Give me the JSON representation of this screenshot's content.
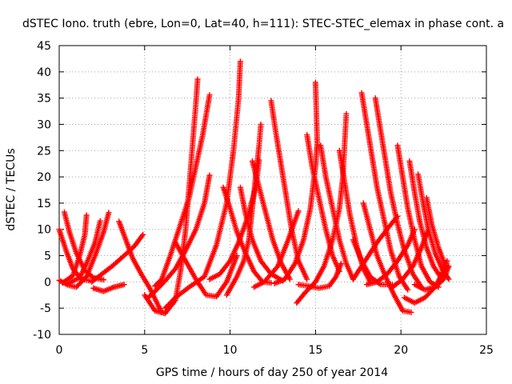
{
  "chart_data": {
    "type": "scatter",
    "title": "dSTEC Iono. truth (ebre, Lon=0, Lat=40, h=111): STEC-STEC_elemax in phase cont. a",
    "xlabel": "GPS time / hours of day 250 of year 2014",
    "ylabel": "dSTEC  / TECUs",
    "xlim": [
      0,
      25
    ],
    "ylim": [
      -10,
      45
    ],
    "xticks": [
      0,
      5,
      10,
      15,
      20,
      25
    ],
    "yticks": [
      -10,
      -5,
      0,
      5,
      10,
      15,
      20,
      25,
      30,
      35,
      40,
      45
    ],
    "grid": true,
    "legend": "none",
    "marker": "+",
    "color": "#ff0000",
    "series": [
      {
        "points": [
          [
            0.0,
            10
          ],
          [
            0.4,
            6
          ],
          [
            0.8,
            2.5
          ],
          [
            1.3,
            0.5
          ],
          [
            1.9,
            0.2
          ]
        ]
      },
      {
        "points": [
          [
            0.3,
            13.3
          ],
          [
            0.6,
            9.5
          ],
          [
            1.0,
            5.5
          ],
          [
            1.5,
            2.2
          ],
          [
            2.0,
            0.8
          ],
          [
            2.6,
            0.4
          ]
        ]
      },
      {
        "points": [
          [
            0.0,
            0.3
          ],
          [
            0.5,
            -0.6
          ],
          [
            1.0,
            -1.0
          ],
          [
            1.6,
            1.0
          ],
          [
            2.1,
            5
          ],
          [
            2.6,
            9.5
          ],
          [
            2.9,
            13.2
          ]
        ]
      },
      {
        "points": [
          [
            0.2,
            -0.2
          ],
          [
            0.8,
            1.2
          ],
          [
            1.2,
            5
          ],
          [
            1.5,
            9
          ],
          [
            1.6,
            12.7
          ]
        ]
      },
      {
        "points": [
          [
            0.5,
            -0.3
          ],
          [
            1.2,
            0.8
          ],
          [
            1.6,
            3.5
          ],
          [
            2.1,
            7.5
          ],
          [
            2.4,
            11.6
          ]
        ]
      },
      {
        "points": [
          [
            2.0,
            -1.2
          ],
          [
            2.6,
            -1.8
          ],
          [
            3.2,
            -1.0
          ],
          [
            3.8,
            -0.5
          ]
        ]
      },
      {
        "points": [
          [
            3.5,
            11.5
          ],
          [
            3.9,
            8
          ],
          [
            4.3,
            4.5
          ],
          [
            4.8,
            1.5
          ],
          [
            5.3,
            -1.2
          ],
          [
            5.8,
            -4.5
          ],
          [
            6.0,
            -5.8
          ]
        ]
      },
      {
        "points": [
          [
            1.9,
            0.0
          ],
          [
            2.5,
            1.5
          ],
          [
            3.1,
            3.0
          ],
          [
            3.8,
            5.0
          ],
          [
            4.4,
            6.8
          ],
          [
            4.9,
            9.0
          ]
        ]
      },
      {
        "points": [
          [
            5.0,
            -2.5
          ],
          [
            5.6,
            -5.5
          ],
          [
            6.2,
            -6.0
          ],
          [
            6.8,
            -3.5
          ],
          [
            7.1,
            2.0
          ],
          [
            7.4,
            10
          ],
          [
            7.7,
            22
          ],
          [
            8.0,
            34
          ],
          [
            8.1,
            38.6
          ]
        ]
      },
      {
        "points": [
          [
            5.6,
            -0.8
          ],
          [
            6.0,
            0.5
          ],
          [
            6.5,
            5.0
          ],
          [
            7.0,
            10
          ],
          [
            7.6,
            16
          ],
          [
            8.0,
            22
          ],
          [
            8.4,
            28
          ],
          [
            8.8,
            35.6
          ]
        ]
      },
      {
        "points": [
          [
            5.2,
            -3.0
          ],
          [
            5.7,
            -1.5
          ],
          [
            6.2,
            0.2
          ],
          [
            6.8,
            2.5
          ],
          [
            7.4,
            6.0
          ],
          [
            8.0,
            10
          ],
          [
            8.5,
            15
          ],
          [
            8.8,
            20.3
          ]
        ]
      },
      {
        "points": [
          [
            6.2,
            -5.0
          ],
          [
            6.8,
            -3.0
          ],
          [
            7.6,
            -1.0
          ],
          [
            8.5,
            1.0
          ],
          [
            9.2,
            7.0
          ],
          [
            9.8,
            15
          ],
          [
            10.2,
            25
          ],
          [
            10.5,
            35
          ],
          [
            10.6,
            42
          ]
        ]
      },
      {
        "points": [
          [
            6.8,
            7.5
          ],
          [
            7.4,
            4.0
          ],
          [
            8.0,
            0.5
          ],
          [
            8.6,
            -2.5
          ],
          [
            9.2,
            -2.8
          ],
          [
            9.8,
            0.0
          ],
          [
            10.4,
            5.0
          ]
        ]
      },
      {
        "points": [
          [
            9.6,
            18
          ],
          [
            10.0,
            14
          ],
          [
            10.4,
            9.5
          ],
          [
            10.9,
            5.5
          ],
          [
            11.4,
            2.0
          ],
          [
            11.9,
            0.0
          ],
          [
            12.4,
            -0.2
          ]
        ]
      },
      {
        "points": [
          [
            9.8,
            -2.5
          ],
          [
            10.4,
            1.0
          ],
          [
            10.8,
            4.0
          ],
          [
            11.1,
            8.0
          ],
          [
            11.3,
            14
          ],
          [
            11.5,
            20
          ],
          [
            11.7,
            26
          ],
          [
            11.8,
            30
          ]
        ]
      },
      {
        "points": [
          [
            8.8,
            0.5
          ],
          [
            9.4,
            1.5
          ],
          [
            10.0,
            4.0
          ],
          [
            10.5,
            7.5
          ],
          [
            11.0,
            12
          ],
          [
            11.5,
            18
          ],
          [
            11.7,
            23.2
          ]
        ]
      },
      {
        "points": [
          [
            10.6,
            18
          ],
          [
            10.9,
            13
          ],
          [
            11.3,
            8
          ],
          [
            11.8,
            4.0
          ],
          [
            12.4,
            1.5
          ],
          [
            13.1,
            0.2
          ]
        ]
      },
      {
        "points": [
          [
            11.3,
            23
          ],
          [
            11.7,
            18
          ],
          [
            12.1,
            13
          ],
          [
            12.5,
            8.0
          ],
          [
            13.0,
            3.5
          ],
          [
            13.5,
            0.5
          ]
        ]
      },
      {
        "points": [
          [
            12.4,
            34.5
          ],
          [
            12.7,
            28
          ],
          [
            13.0,
            22
          ],
          [
            13.3,
            16
          ],
          [
            13.6,
            10
          ],
          [
            14.0,
            4.0
          ],
          [
            14.5,
            0.5
          ]
        ]
      },
      {
        "points": [
          [
            11.4,
            -1.0
          ],
          [
            12.0,
            0.0
          ],
          [
            12.8,
            3.0
          ],
          [
            13.4,
            8.0
          ],
          [
            14.0,
            13.5
          ]
        ]
      },
      {
        "points": [
          [
            12.6,
            -0.3
          ],
          [
            13.2,
            0.5
          ],
          [
            13.8,
            3.5
          ],
          [
            14.3,
            8.0
          ],
          [
            14.7,
            14
          ],
          [
            15.0,
            22
          ],
          [
            15.1,
            26.5
          ],
          [
            15.0,
            38
          ]
        ]
      },
      {
        "points": [
          [
            14.5,
            28
          ],
          [
            14.8,
            22
          ],
          [
            15.2,
            16
          ],
          [
            15.6,
            10
          ],
          [
            16.0,
            5.0
          ],
          [
            16.4,
            2.0
          ]
        ]
      },
      {
        "points": [
          [
            13.9,
            -4.0
          ],
          [
            14.4,
            -2.0
          ],
          [
            15.0,
            0.0
          ],
          [
            15.5,
            3.0
          ],
          [
            16.0,
            8.0
          ],
          [
            16.4,
            14
          ],
          [
            16.6,
            20
          ],
          [
            16.7,
            26
          ],
          [
            16.8,
            32
          ]
        ]
      },
      {
        "points": [
          [
            15.3,
            26
          ],
          [
            15.6,
            20
          ],
          [
            16.0,
            14
          ],
          [
            16.4,
            8.0
          ],
          [
            16.8,
            3.5
          ],
          [
            17.2,
            0.5
          ]
        ]
      },
      {
        "points": [
          [
            14.0,
            -0.5
          ],
          [
            14.6,
            -0.8
          ],
          [
            15.2,
            -1.2
          ],
          [
            15.8,
            -0.8
          ],
          [
            16.2,
            1.0
          ],
          [
            16.5,
            3.5
          ]
        ]
      },
      {
        "points": [
          [
            16.4,
            25
          ],
          [
            16.7,
            19
          ],
          [
            17.0,
            13
          ],
          [
            17.4,
            7.0
          ],
          [
            17.8,
            2.5
          ],
          [
            18.2,
            0.0
          ]
        ]
      },
      {
        "points": [
          [
            17.7,
            36
          ],
          [
            18.0,
            30
          ],
          [
            18.3,
            24
          ],
          [
            18.6,
            18
          ],
          [
            19.0,
            12
          ],
          [
            19.4,
            6.0
          ],
          [
            19.9,
            1.0
          ],
          [
            20.4,
            -1.5
          ]
        ]
      },
      {
        "points": [
          [
            18.5,
            35
          ],
          [
            18.8,
            29
          ],
          [
            19.1,
            23
          ],
          [
            19.4,
            17
          ],
          [
            19.8,
            11
          ],
          [
            20.2,
            6.0
          ],
          [
            20.7,
            1.5
          ],
          [
            21.2,
            -1.0
          ]
        ]
      },
      {
        "points": [
          [
            17.8,
            15
          ],
          [
            18.2,
            10
          ],
          [
            18.6,
            5.0
          ],
          [
            19.1,
            1.0
          ],
          [
            19.6,
            -2.5
          ],
          [
            20.1,
            -5.5
          ],
          [
            20.6,
            -5.8
          ]
        ]
      },
      {
        "points": [
          [
            19.8,
            26
          ],
          [
            20.1,
            20
          ],
          [
            20.4,
            14
          ],
          [
            20.8,
            8.0
          ],
          [
            21.2,
            3.0
          ],
          [
            21.7,
            0.0
          ],
          [
            22.2,
            -1.0
          ]
        ]
      },
      {
        "points": [
          [
            20.5,
            23
          ],
          [
            20.8,
            17
          ],
          [
            21.1,
            11.5
          ],
          [
            21.5,
            6.5
          ],
          [
            21.9,
            3.0
          ],
          [
            22.4,
            0.5
          ]
        ]
      },
      {
        "points": [
          [
            21.0,
            20.5
          ],
          [
            21.3,
            15
          ],
          [
            21.6,
            10
          ],
          [
            22.0,
            5.5
          ],
          [
            22.4,
            2.5
          ],
          [
            22.8,
            0.5
          ]
        ]
      },
      {
        "points": [
          [
            21.5,
            16
          ],
          [
            21.8,
            11
          ],
          [
            22.2,
            6.5
          ],
          [
            22.6,
            3.0
          ]
        ]
      },
      {
        "points": [
          [
            17.2,
            8.0
          ],
          [
            17.7,
            4.0
          ],
          [
            18.2,
            1.0
          ],
          [
            18.8,
            -0.5
          ],
          [
            19.5,
            -0.5
          ]
        ]
      },
      {
        "points": [
          [
            17.2,
            0.5
          ],
          [
            17.9,
            4.0
          ],
          [
            18.6,
            7.5
          ],
          [
            19.3,
            10.5
          ],
          [
            19.8,
            12.5
          ]
        ]
      },
      {
        "points": [
          [
            18.0,
            -0.5
          ],
          [
            18.6,
            0.0
          ],
          [
            19.2,
            1.5
          ],
          [
            19.8,
            4.0
          ],
          [
            20.4,
            7.0
          ],
          [
            20.8,
            10
          ]
        ]
      },
      {
        "points": [
          [
            19.5,
            -1.0
          ],
          [
            20.1,
            0.5
          ],
          [
            20.7,
            3.0
          ],
          [
            21.2,
            6.5
          ],
          [
            21.6,
            10
          ]
        ]
      },
      {
        "points": [
          [
            20.2,
            -3.0
          ],
          [
            20.8,
            -4.0
          ],
          [
            21.4,
            -3.0
          ],
          [
            22.0,
            -1.0
          ],
          [
            22.4,
            1.5
          ],
          [
            22.7,
            4.0
          ]
        ]
      },
      {
        "points": [
          [
            20.8,
            -0.5
          ],
          [
            21.4,
            -1.5
          ],
          [
            22.0,
            -1.0
          ],
          [
            22.5,
            0.5
          ],
          [
            22.8,
            3.0
          ]
        ]
      }
    ]
  }
}
